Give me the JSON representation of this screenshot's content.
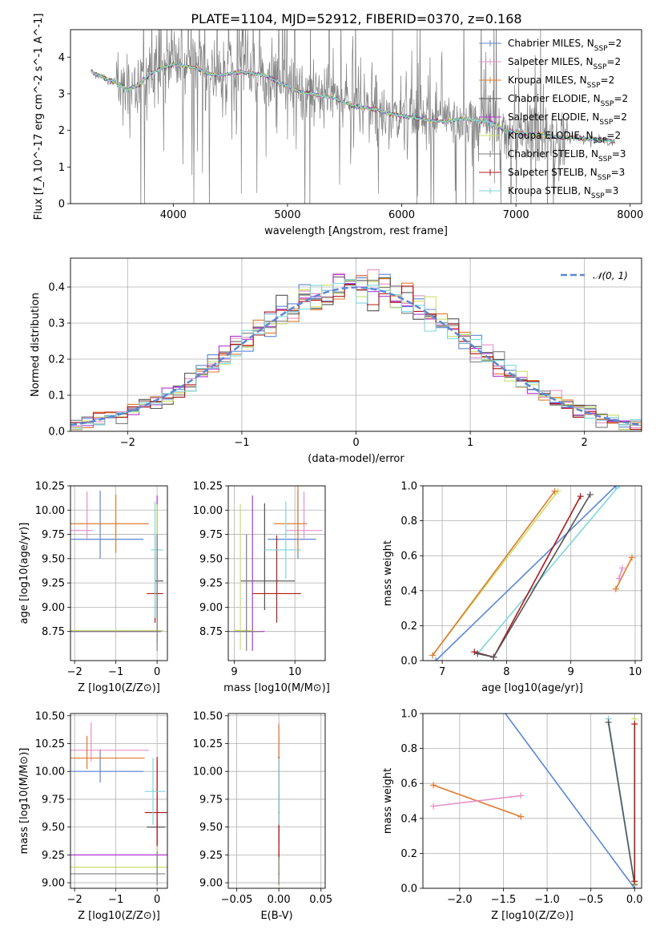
{
  "figure": {
    "title": "PLATE=1104, MJD=52912, FIBERID=0370, z=0.168"
  },
  "series": [
    {
      "name": "Chabrier MILES, N_SSP=2",
      "color": "#5b87d6"
    },
    {
      "name": "Salpeter MILES, N_SSP=2",
      "color": "#e58fc9"
    },
    {
      "name": "Kroupa MILES, N_SSP=2",
      "color": "#e07b2e"
    },
    {
      "name": "Chabrier ELODIE, N_SSP=2",
      "color": "#555555"
    },
    {
      "name": "Salpeter ELODIE, N_SSP=2",
      "color": "#b233d6"
    },
    {
      "name": "Kroupa ELODIE, N_SSP=2",
      "color": "#c8e06a"
    },
    {
      "name": "Chabrier STELIB, N_SSP=3",
      "color": "#7f7f7f"
    },
    {
      "name": "Salpeter STELIB, N_SSP=3",
      "color": "#b01818"
    },
    {
      "name": "Kroupa STELIB, N_SSP=3",
      "color": "#7fd6dc"
    }
  ],
  "chart_data": [
    {
      "id": "spectrum",
      "type": "line",
      "xlabel": "wavelength [Angstrom, rest frame]",
      "ylabel": "Flux [f_λ 10^-17 erg cm^-2 s^-1 A^-1]",
      "xlim": [
        3100,
        8100
      ],
      "ylim": [
        0,
        4.75
      ],
      "xticks": [
        4000,
        5000,
        6000,
        7000,
        8000
      ],
      "yticks": [
        0,
        1,
        2,
        3,
        4
      ],
      "model_curve": {
        "x": [
          3280,
          3350,
          3420,
          3500,
          3600,
          3700,
          3800,
          3900,
          4000,
          4100,
          4200,
          4300,
          4400,
          4500,
          4600,
          4700,
          4800,
          4900,
          5000,
          5100,
          5200,
          5300,
          5400,
          5500,
          5600,
          5700,
          5800,
          5900,
          6000,
          6100,
          6200,
          6300,
          6400,
          6500,
          6600,
          6700,
          6800,
          6900,
          7000,
          7100,
          7200,
          7300,
          7400,
          7500,
          7600,
          7700,
          7800,
          7870
        ],
        "y": [
          3.6,
          3.5,
          3.4,
          3.3,
          3.1,
          3.25,
          3.55,
          3.7,
          3.8,
          3.75,
          3.7,
          3.55,
          3.5,
          3.55,
          3.6,
          3.55,
          3.5,
          3.35,
          3.2,
          3.05,
          3.0,
          2.95,
          2.9,
          2.75,
          2.65,
          2.6,
          2.55,
          2.45,
          2.4,
          2.35,
          2.3,
          2.25,
          2.25,
          2.3,
          2.3,
          2.25,
          2.2,
          2.0,
          1.95,
          1.9,
          1.9,
          1.85,
          1.8,
          1.8,
          1.78,
          1.75,
          1.72,
          1.7
        ]
      },
      "data_noise_range": [
        3500,
        7450
      ]
    },
    {
      "id": "residuals",
      "type": "bar",
      "xlabel": "(data-model)/error",
      "ylabel": "Normed distribution",
      "xlim": [
        -2.5,
        2.5
      ],
      "ylim": [
        0,
        0.48
      ],
      "xticks": [
        -2,
        -1,
        0,
        1,
        2
      ],
      "yticks": [
        0.0,
        0.1,
        0.2,
        0.3,
        0.4
      ],
      "legend": "𝒩(0, 1)",
      "bin_width": 0.1
    },
    {
      "id": "age-Z",
      "type": "scatter",
      "xlabel": "Z [log10(Z/Z⊙)]",
      "ylabel": "age  [log10(age/yr)]",
      "xlim": [
        -2.1,
        0.25
      ],
      "ylim": [
        8.45,
        10.25
      ],
      "xticks": [
        -2,
        -1,
        0
      ],
      "yticks": [
        8.75,
        9.0,
        9.25,
        9.5,
        9.75,
        10.0,
        10.25
      ]
    },
    {
      "id": "age-mass",
      "type": "scatter",
      "xlabel": "mass [log10(M/M⊙)]",
      "xlim": [
        8.9,
        10.5
      ],
      "ylim": [
        8.45,
        10.25
      ],
      "xticks": [
        9,
        10
      ],
      "yticks": [
        8.75,
        9.0,
        9.25,
        9.5,
        9.75,
        10.0,
        10.25
      ]
    },
    {
      "id": "weight-age",
      "type": "line",
      "xlabel": "age  [log10(age/yr)]",
      "ylabel": "mass weight",
      "xlim": [
        6.7,
        10.1
      ],
      "ylim": [
        0,
        1
      ],
      "xticks": [
        7,
        8,
        9,
        10
      ],
      "yticks": [
        0.0,
        0.2,
        0.4,
        0.6,
        0.8,
        1.0
      ]
    },
    {
      "id": "mass-Z",
      "type": "scatter",
      "xlabel": "Z [log10(Z/Z⊙)]",
      "ylabel": "mass [log10(M/M⊙)]",
      "xlim": [
        -2.1,
        0.25
      ],
      "ylim": [
        8.95,
        10.52
      ],
      "xticks": [
        -2,
        -1,
        0
      ],
      "yticks": [
        9.0,
        9.25,
        9.5,
        9.75,
        10.0,
        10.25,
        10.5
      ]
    },
    {
      "id": "mass-ebv",
      "type": "scatter",
      "xlabel": "E(B-V)",
      "xlim": [
        -0.06,
        0.055
      ],
      "ylim": [
        8.95,
        10.52
      ],
      "xticks": [
        -0.05,
        0.0,
        0.05
      ],
      "yticks": [
        9.0,
        9.25,
        9.5,
        9.75,
        10.0,
        10.25,
        10.5
      ]
    },
    {
      "id": "weight-Z",
      "type": "line",
      "xlabel": "Z [log10(Z/Z⊙)]",
      "ylabel": "mass weight",
      "xlim": [
        -2.42,
        0.08
      ],
      "ylim": [
        0,
        1
      ],
      "xticks": [
        -2.0,
        -1.5,
        -1.0,
        -0.5,
        0.0
      ],
      "yticks": [
        0.0,
        0.2,
        0.4,
        0.6,
        0.8,
        1.0
      ]
    }
  ],
  "labels": {
    "tick_fmt": "auto"
  }
}
